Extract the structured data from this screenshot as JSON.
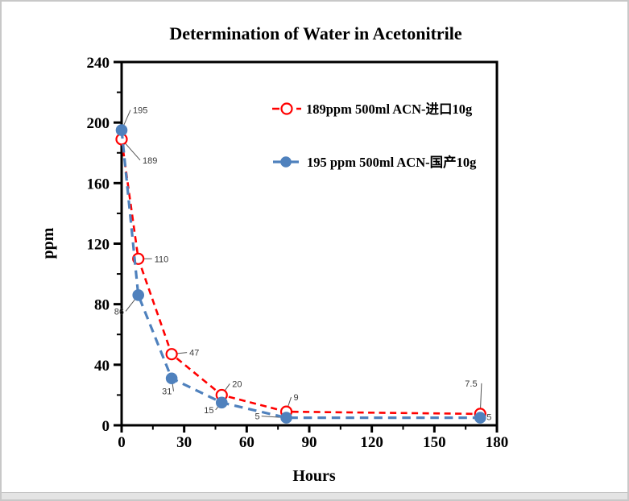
{
  "window": {
    "background": "#ffffff",
    "border_color": "#c8c8c8",
    "bottom_strip_color": "#e4e4e4"
  },
  "chart_data": {
    "type": "line",
    "title": "Determination of Water in Acetonitrile",
    "xlabel": "Hours",
    "ylabel": "ppm",
    "xlim": [
      0,
      180
    ],
    "ylim": [
      0,
      240
    ],
    "xticks": [
      0,
      30,
      60,
      90,
      120,
      150,
      180
    ],
    "yticks": [
      0,
      40,
      80,
      120,
      160,
      200,
      240
    ],
    "minor_xticks": [
      15,
      45,
      75,
      105,
      135,
      165
    ],
    "minor_yticks": [
      20,
      60,
      100,
      140,
      180,
      220
    ],
    "grid": false,
    "legend_position": "inside-upper-right",
    "axis_color": "#000000",
    "series": [
      {
        "name": "189ppm  500ml ACN-进口10g",
        "color": "#ff0000",
        "marker": "open-circle",
        "line_style": "dashed",
        "x": [
          0,
          8,
          24,
          48,
          79,
          172
        ],
        "y": [
          189,
          110,
          47,
          20,
          9,
          7.5
        ],
        "point_labels": [
          {
            "text": "189",
            "dx": 26,
            "dy": 30
          },
          {
            "text": "110",
            "dx": 20,
            "dy": 4
          },
          {
            "text": "47",
            "dx": 22,
            "dy": 2
          },
          {
            "text": "20",
            "dx": 13,
            "dy": -10
          },
          {
            "text": "9",
            "dx": 9,
            "dy": -14
          },
          {
            "text": "7.5",
            "dx": -19,
            "dy": -34
          }
        ]
      },
      {
        "name": "195 ppm 500ml ACN-国产10g",
        "color": "#4f81bd",
        "marker": "filled-circle",
        "line_style": "dashed",
        "x": [
          0,
          8,
          24,
          48,
          79,
          172
        ],
        "y": [
          195,
          86,
          31,
          15,
          5,
          5
        ],
        "point_labels": [
          {
            "text": "195",
            "dx": 14,
            "dy": -21
          },
          {
            "text": "86",
            "dx": -30,
            "dy": 24
          },
          {
            "text": "31",
            "dx": -12,
            "dy": 20
          },
          {
            "text": "15",
            "dx": -22,
            "dy": 13
          },
          {
            "text": "5",
            "dx": -39,
            "dy": 2
          },
          {
            "text": "5",
            "dx": 8,
            "dy": 3
          }
        ]
      }
    ]
  }
}
